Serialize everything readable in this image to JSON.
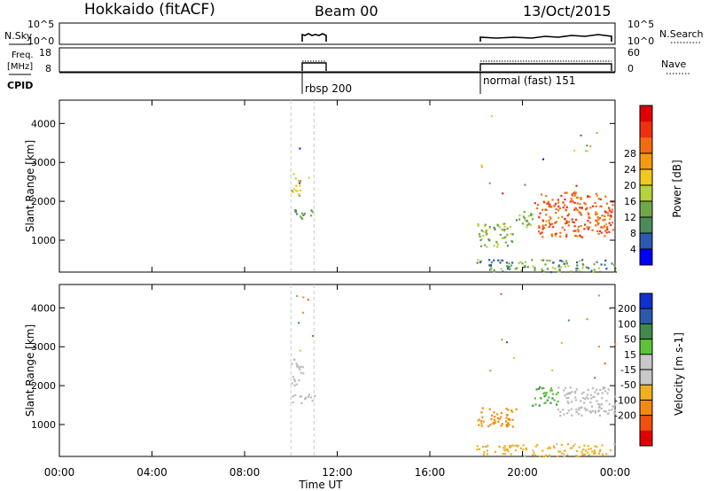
{
  "header": {
    "station": "Hokkaido (fitACF)",
    "beam": "Beam 00",
    "date": "13/Oct/2015"
  },
  "top_panels": {
    "nsky_label": "N.Sky",
    "nsky_ticks": [
      "10^5",
      "10^0"
    ],
    "nsearch_label": "N.Search",
    "nsearch_ticks": [
      "10^5",
      "10^0"
    ],
    "freq_label_line1": "Freq.",
    "freq_label_line2": "[MHz]",
    "freq_ticks": [
      "18",
      "8"
    ],
    "nave_label": "Nave",
    "nave_ticks": [
      "60",
      "0"
    ],
    "cpid_label": "CPID",
    "modes": [
      {
        "name": "rbsp 200",
        "start_hour": 10.0,
        "end_hour": 11.0
      },
      {
        "name": "normal (fast) 151",
        "start_hour": 18.0,
        "end_hour": 24.0
      }
    ]
  },
  "colors": {
    "power": [
      "#0000ff",
      "#2d59b0",
      "#4c8b5b",
      "#70a848",
      "#b6d23c",
      "#f2c820",
      "#f59a10",
      "#f26b10",
      "#ee3010",
      "#e00000"
    ],
    "velocity": [
      "#1030d0",
      "#2b5aa8",
      "#3f8a4c",
      "#5cc23a",
      "#c8c8c8",
      "#c8c8c8",
      "#f0b020",
      "#f08a10",
      "#f05010",
      "#e00000"
    ],
    "ground": "#bbbbbb"
  },
  "chart_data": [
    {
      "type": "heatmap",
      "panel": "power",
      "xlabel": "",
      "ylabel": "Slant Range [km]",
      "xlim_hours": [
        0,
        24
      ],
      "ylim_km": [
        180,
        4600
      ],
      "yticks": [
        "1000",
        "2000",
        "3000",
        "4000"
      ],
      "ytick_values": [
        1000,
        2000,
        3000,
        4000
      ],
      "colorbar": {
        "label": "Power [dB]",
        "ticks": [
          "4",
          "8",
          "12",
          "16",
          "20",
          "24",
          "28"
        ],
        "range": [
          0,
          32
        ]
      },
      "regions": [
        {
          "t0": 10.0,
          "t1": 10.4,
          "r0": 2150,
          "r1": 2800,
          "value": 15,
          "spread": 8
        },
        {
          "t0": 10.0,
          "t1": 11.0,
          "r0": 1550,
          "r1": 1800,
          "value": 9,
          "spread": 6
        },
        {
          "t0": 18.0,
          "t1": 19.6,
          "r0": 850,
          "r1": 1450,
          "value": 13,
          "spread": 10
        },
        {
          "t0": 19.6,
          "t1": 20.4,
          "r0": 1350,
          "r1": 1800,
          "value": 12,
          "spread": 6
        },
        {
          "t0": 20.5,
          "t1": 23.9,
          "r0": 1100,
          "r1": 2250,
          "value": 25,
          "spread": 6
        },
        {
          "t0": 18.0,
          "t1": 24.0,
          "r0": 200,
          "r1": 520,
          "value": 10,
          "spread": 12
        }
      ]
    },
    {
      "type": "heatmap",
      "panel": "velocity",
      "xlabel": "Time UT",
      "ylabel": "Slant Range [km]",
      "xlim_hours": [
        0,
        24
      ],
      "ylim_km": [
        180,
        4600
      ],
      "xticks": [
        "00:00",
        "04:00",
        "08:00",
        "12:00",
        "16:00",
        "20:00",
        "00:00"
      ],
      "xtick_values": [
        0,
        4,
        8,
        12,
        16,
        20,
        24
      ],
      "yticks": [
        "1000",
        "2000",
        "3000",
        "4000"
      ],
      "ytick_values": [
        1000,
        2000,
        3000,
        4000
      ],
      "colorbar": {
        "label": "Velocity [m s-1]",
        "ticks": [
          "200",
          "100",
          "50",
          "15",
          "-15",
          "-50",
          "-100",
          "-200"
        ]
      },
      "regions": [
        {
          "t0": 10.0,
          "t1": 10.5,
          "r0": 2000,
          "r1": 2700,
          "value": "ground"
        },
        {
          "t0": 10.0,
          "t1": 11.0,
          "r0": 1550,
          "r1": 1800,
          "value": "ground"
        },
        {
          "t0": 18.0,
          "t1": 19.8,
          "r0": 950,
          "r1": 1450,
          "value": -60
        },
        {
          "t0": 20.4,
          "t1": 21.5,
          "r0": 1500,
          "r1": 2000,
          "value": 40
        },
        {
          "t0": 21.5,
          "t1": 24.0,
          "r0": 1250,
          "r1": 2000,
          "value": "ground"
        },
        {
          "t0": 18.0,
          "t1": 24.0,
          "r0": 200,
          "r1": 520,
          "value": -30
        }
      ]
    }
  ]
}
